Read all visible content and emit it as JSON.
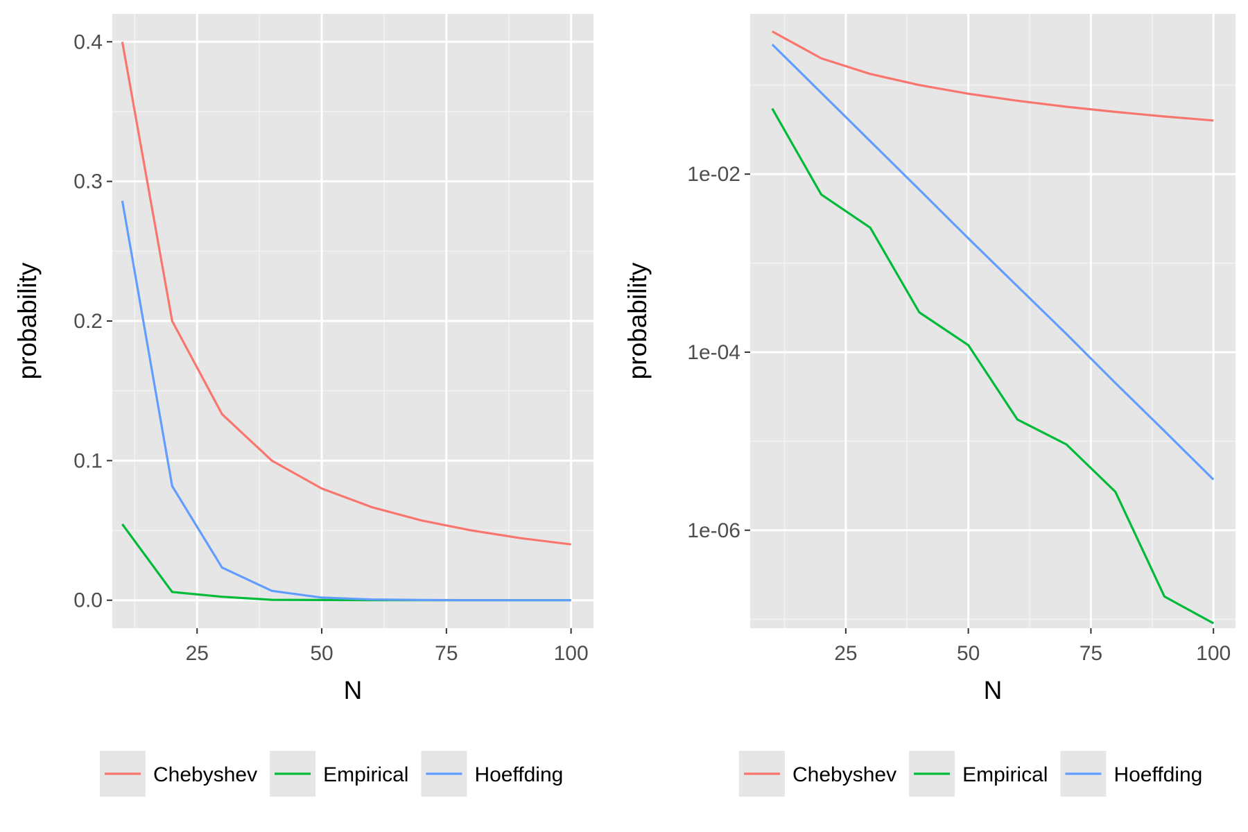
{
  "colors": {
    "panel_bg": "#e6e6e6",
    "grid_major": "#ffffff",
    "grid_minor": "#f2f2f2",
    "tick_text": "#4d4d4d",
    "title_text": "#000000"
  },
  "chart_data": [
    {
      "type": "line",
      "xlabel": "N",
      "ylabel": "probability",
      "xlim": [
        8,
        104.5
      ],
      "ylim": [
        -0.02,
        0.42
      ],
      "yscale": "linear",
      "grid": true,
      "legend_position": "bottom",
      "x_ticks": [
        25,
        50,
        75,
        100
      ],
      "x_tick_labels": [
        "25",
        "50",
        "75",
        "100"
      ],
      "y_ticks": [
        0,
        0.1,
        0.2,
        0.3,
        0.4
      ],
      "y_tick_labels": [
        "0.0",
        "0.1",
        "0.2",
        "0.3",
        "0.4"
      ],
      "x": [
        10,
        20,
        30,
        40,
        50,
        60,
        70,
        80,
        90,
        100
      ],
      "series": [
        {
          "name": "Chebyshev",
          "color": "#F8766D",
          "values": [
            0.4,
            0.2,
            0.1333,
            0.1,
            0.08,
            0.0667,
            0.0571,
            0.05,
            0.0444,
            0.04
          ]
        },
        {
          "name": "Empirical",
          "color": "#00BA38",
          "values": [
            0.0545,
            0.0059,
            0.0025,
            0.0003,
            0.00015,
            2e-05,
            1e-05,
            3e-06,
            2e-07,
            1e-07
          ]
        },
        {
          "name": "Hoeffding",
          "color": "#619CFF",
          "values": [
            0.2861,
            0.0818,
            0.0234,
            0.0067,
            0.0019,
            0.00055,
            0.00016,
            4.5e-05,
            1.3e-05,
            3.7e-06
          ]
        }
      ]
    },
    {
      "type": "line",
      "xlabel": "N",
      "ylabel": "probability",
      "xlim": [
        5.5,
        104.5
      ],
      "ylim_log10": [
        -7.1,
        -0.2
      ],
      "yscale": "log10",
      "grid": true,
      "legend_position": "bottom",
      "x_ticks": [
        25,
        50,
        75,
        100
      ],
      "x_tick_labels": [
        "25",
        "50",
        "75",
        "100"
      ],
      "y_ticks": [
        0.01,
        0.0001,
        1e-06
      ],
      "y_tick_labels": [
        "1e-02",
        "1e-04",
        "1e-06"
      ],
      "x": [
        10,
        20,
        30,
        40,
        50,
        60,
        70,
        80,
        90,
        100
      ],
      "series": [
        {
          "name": "Chebyshev",
          "color": "#F8766D",
          "values": [
            0.4,
            0.2,
            0.1333,
            0.1,
            0.08,
            0.0667,
            0.0571,
            0.05,
            0.0444,
            0.04
          ]
        },
        {
          "name": "Empirical",
          "color": "#00BA38",
          "values": [
            0.0545,
            0.0059,
            0.0025,
            0.00028,
            0.00012,
            1.75e-05,
            9.2e-06,
            2.7e-06,
            1.8e-07,
            9e-08
          ]
        },
        {
          "name": "Hoeffding",
          "color": "#619CFF",
          "values": [
            0.2861,
            0.0818,
            0.0234,
            0.0067,
            0.0019,
            0.00055,
            0.00016,
            4.5e-05,
            1.3e-05,
            3.7e-06
          ]
        }
      ]
    }
  ]
}
